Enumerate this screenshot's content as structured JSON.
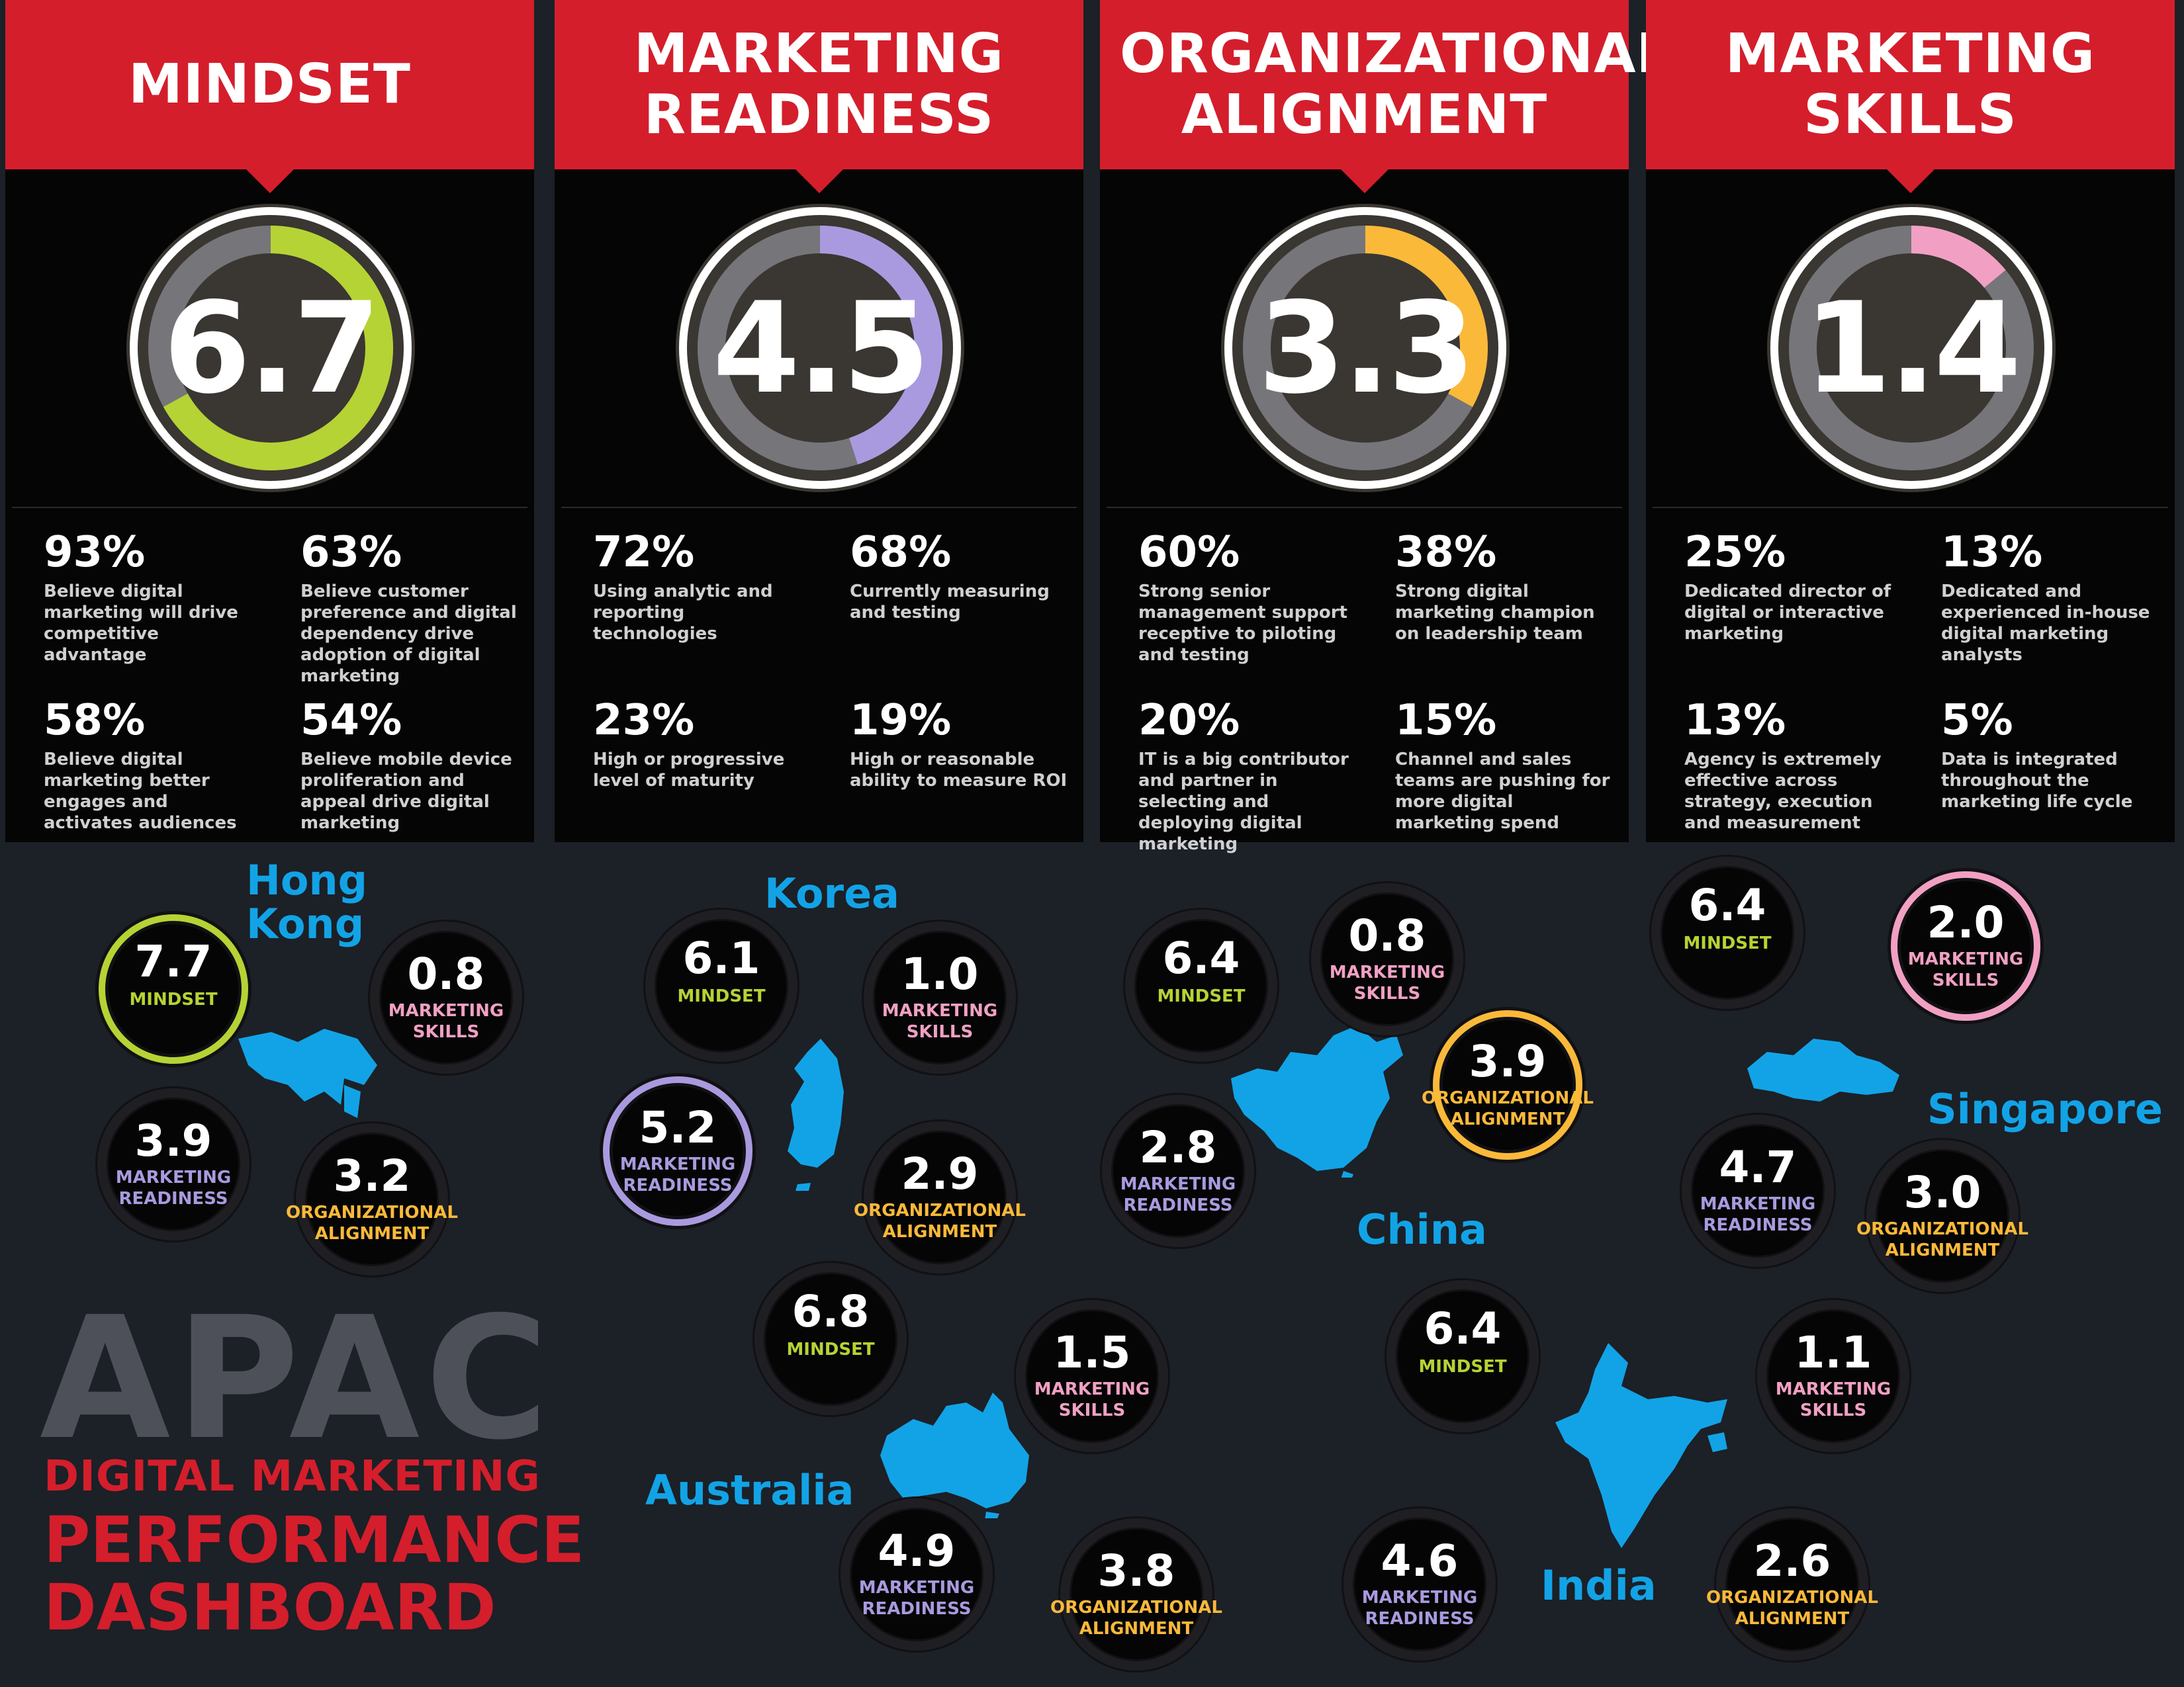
{
  "chart_data": {
    "type": "radial-gauge",
    "max": 10,
    "colors": {
      "Mindset": "#b5d334",
      "Marketing Readiness": "#a99adf",
      "Organizational Alignment": "#fbb93a",
      "Marketing Skills": "#f1a0c4",
      "country": "#12a3e6",
      "red": "#d41e2c"
    },
    "panels": [
      {
        "title": "MINDSET",
        "value": "6.7",
        "score": 6.7,
        "color": "#b5d334",
        "stats": [
          {
            "pct": "93%",
            "desc": "Believe digital marketing will drive competitive advantage"
          },
          {
            "pct": "63%",
            "desc": "Believe customer preference and digital dependency drive adoption of digital marketing"
          },
          {
            "pct": "58%",
            "desc": "Believe digital marketing better engages and activates audiences"
          },
          {
            "pct": "54%",
            "desc": "Believe mobile device proliferation and appeal drive digital marketing"
          }
        ]
      },
      {
        "title": "MARKETING READINESS",
        "value": "4.5",
        "score": 4.5,
        "color": "#a99adf",
        "stats": [
          {
            "pct": "72%",
            "desc": "Using analytic and reporting technologies"
          },
          {
            "pct": "68%",
            "desc": "Currently measuring and testing"
          },
          {
            "pct": "23%",
            "desc": "High or progressive level of maturity"
          },
          {
            "pct": "19%",
            "desc": "High or reasonable ability to measure ROI"
          }
        ]
      },
      {
        "title": "ORGANIZATIONAL ALIGNMENT",
        "value": "3.3",
        "score": 3.3,
        "color": "#fbb93a",
        "stats": [
          {
            "pct": "60%",
            "desc": "Strong senior management support receptive to piloting and testing"
          },
          {
            "pct": "38%",
            "desc": "Strong digital marketing champion on leadership team"
          },
          {
            "pct": "20%",
            "desc": "IT is a big contributor and partner in selecting and deploying digital marketing"
          },
          {
            "pct": "15%",
            "desc": "Channel and sales teams are pushing for more digital marketing spend"
          }
        ]
      },
      {
        "title": "MARKETING SKILLS",
        "value": "1.4",
        "score": 1.4,
        "color": "#f1a0c4",
        "stats": [
          {
            "pct": "25%",
            "desc": "Dedicated director of digital or interactive marketing"
          },
          {
            "pct": "13%",
            "desc": "Dedicated and experienced in-house digital marketing analysts"
          },
          {
            "pct": "13%",
            "desc": "Agency is extremely effective across strategy, execution and measurement"
          },
          {
            "pct": "5%",
            "desc": "Data is integrated throughout the marketing life cycle"
          }
        ]
      }
    ],
    "metric_labels": {
      "mindset": "MINDSET",
      "skills": "MARKETING\nSKILLS",
      "readiness": "MARKETING\nREADINESS",
      "alignment": "ORGANIZATIONAL\nALIGNMENT"
    },
    "countries": [
      {
        "name": "Hong\nKong",
        "highlight": "mindset",
        "metrics": {
          "mindset": "7.7",
          "skills": "0.8",
          "readiness": "3.9",
          "alignment": "3.2"
        }
      },
      {
        "name": "Korea",
        "highlight": "readiness",
        "metrics": {
          "mindset": "6.1",
          "skills": "1.0",
          "readiness": "5.2",
          "alignment": "2.9"
        }
      },
      {
        "name": "China",
        "highlight": "alignment",
        "metrics": {
          "mindset": "6.4",
          "skills": "0.8",
          "readiness": "2.8",
          "alignment": "3.9"
        }
      },
      {
        "name": "Singapore",
        "highlight": "skills",
        "metrics": {
          "mindset": "6.4",
          "skills": "2.0",
          "readiness": "4.7",
          "alignment": "3.0"
        }
      },
      {
        "name": "Australia",
        "highlight": "",
        "metrics": {
          "mindset": "6.8",
          "skills": "1.5",
          "readiness": "4.9",
          "alignment": "3.8"
        }
      },
      {
        "name": "India",
        "highlight": "",
        "metrics": {
          "mindset": "6.4",
          "skills": "1.1",
          "readiness": "4.6",
          "alignment": "2.6"
        }
      }
    ]
  },
  "footer": {
    "apac": "APAC",
    "line1": "DIGITAL MARKETING",
    "line2": "PERFORMANCE",
    "line3": "DASHBOARD"
  }
}
